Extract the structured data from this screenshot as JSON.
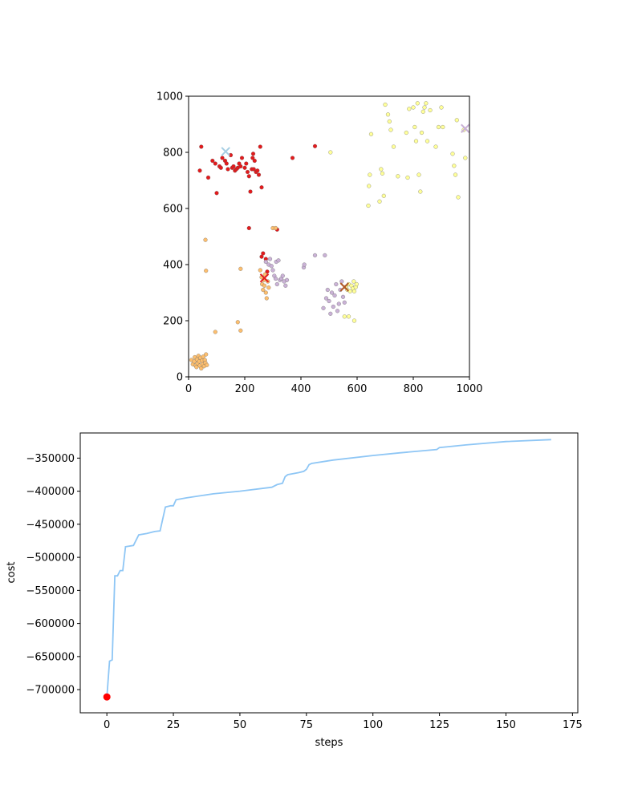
{
  "chart_data": [
    {
      "type": "scatter",
      "title": "",
      "xlabel": "",
      "ylabel": "",
      "xlim": [
        0,
        1000
      ],
      "ylim": [
        0,
        1000
      ],
      "x_ticks": [
        "0",
        "200",
        "400",
        "600",
        "800",
        "1000"
      ],
      "y_ticks": [
        "0",
        "200",
        "400",
        "600",
        "800",
        "1000"
      ],
      "grid": false,
      "legend": "none",
      "clusters": [
        {
          "color": "#e31a1c",
          "center": [
            270,
            352
          ],
          "points": [
            [
              40,
              735
            ],
            [
              45,
              820
            ],
            [
              70,
              710
            ],
            [
              85,
              770
            ],
            [
              95,
              760
            ],
            [
              100,
              655
            ],
            [
              110,
              750
            ],
            [
              115,
              745
            ],
            [
              120,
              780
            ],
            [
              130,
              770
            ],
            [
              135,
              760
            ],
            [
              140,
              740
            ],
            [
              150,
              790
            ],
            [
              155,
              745
            ],
            [
              160,
              750
            ],
            [
              165,
              735
            ],
            [
              170,
              740
            ],
            [
              175,
              745
            ],
            [
              180,
              760
            ],
            [
              185,
              750
            ],
            [
              190,
              780
            ],
            [
              200,
              745
            ],
            [
              205,
              760
            ],
            [
              210,
              730
            ],
            [
              215,
              715
            ],
            [
              220,
              660
            ],
            [
              225,
              740
            ],
            [
              228,
              780
            ],
            [
              230,
              795
            ],
            [
              232,
              740
            ],
            [
              235,
              770
            ],
            [
              240,
              730
            ],
            [
              245,
              735
            ],
            [
              250,
              720
            ],
            [
              255,
              820
            ],
            [
              260,
              675
            ],
            [
              215,
              530
            ],
            [
              315,
              525
            ],
            [
              260,
              428
            ],
            [
              265,
              440
            ],
            [
              275,
              420
            ],
            [
              280,
              375
            ],
            [
              370,
              780
            ],
            [
              450,
              822
            ]
          ]
        },
        {
          "color": "#fdbf6f",
          "center": [
            270,
            352
          ],
          "points": [
            [
              60,
              488
            ],
            [
              62,
              378
            ],
            [
              95,
              160
            ],
            [
              175,
              195
            ],
            [
              185,
              165
            ],
            [
              185,
              385
            ],
            [
              10,
              60
            ],
            [
              15,
              45
            ],
            [
              20,
              55
            ],
            [
              22,
              70
            ],
            [
              25,
              40
            ],
            [
              28,
              35
            ],
            [
              30,
              62
            ],
            [
              32,
              48
            ],
            [
              35,
              75
            ],
            [
              38,
              55
            ],
            [
              40,
              40
            ],
            [
              42,
              68
            ],
            [
              45,
              30
            ],
            [
              48,
              58
            ],
            [
              50,
              45
            ],
            [
              52,
              72
            ],
            [
              55,
              38
            ],
            [
              58,
              60
            ],
            [
              60,
              50
            ],
            [
              62,
              80
            ],
            [
              65,
              42
            ],
            [
              255,
              380
            ],
            [
              260,
              355
            ],
            [
              262,
              330
            ],
            [
              265,
              310
            ],
            [
              268,
              345
            ],
            [
              270,
              325
            ],
            [
              272,
              365
            ],
            [
              275,
              300
            ],
            [
              278,
              280
            ],
            [
              282,
              340
            ],
            [
              285,
              318
            ],
            [
              300,
              530
            ],
            [
              310,
              530
            ]
          ]
        },
        {
          "color": "#cab2d6",
          "center": [
            985,
            885
          ],
          "points": [
            [
              275,
              410
            ],
            [
              285,
              400
            ],
            [
              290,
              420
            ],
            [
              295,
              395
            ],
            [
              300,
              380
            ],
            [
              305,
              360
            ],
            [
              310,
              350
            ],
            [
              312,
              410
            ],
            [
              315,
              330
            ],
            [
              320,
              415
            ],
            [
              325,
              345
            ],
            [
              330,
              350
            ],
            [
              335,
              360
            ],
            [
              340,
              340
            ],
            [
              345,
              325
            ],
            [
              350,
              345
            ],
            [
              410,
              390
            ],
            [
              412,
              400
            ],
            [
              450,
              433
            ],
            [
              485,
              433
            ],
            [
              480,
              245
            ],
            [
              490,
              280
            ],
            [
              495,
              310
            ],
            [
              500,
              270
            ],
            [
              505,
              225
            ],
            [
              510,
              300
            ],
            [
              515,
              250
            ],
            [
              520,
              290
            ],
            [
              525,
              330
            ],
            [
              530,
              235
            ],
            [
              535,
              260
            ],
            [
              540,
              310
            ],
            [
              545,
              340
            ],
            [
              550,
              285
            ],
            [
              555,
              265
            ],
            [
              560,
              320
            ]
          ]
        },
        {
          "color": "#ffff99",
          "center": [
            555,
            320
          ],
          "points": [
            [
              505,
              800
            ],
            [
              555,
              215
            ],
            [
              570,
              215
            ],
            [
              590,
              200
            ],
            [
              560,
              320
            ],
            [
              565,
              310
            ],
            [
              570,
              330
            ],
            [
              575,
              305
            ],
            [
              580,
              325
            ],
            [
              585,
              315
            ],
            [
              588,
              340
            ],
            [
              590,
              305
            ],
            [
              595,
              320
            ],
            [
              598,
              330
            ],
            [
              640,
              610
            ],
            [
              642,
              680
            ],
            [
              645,
              720
            ],
            [
              650,
              865
            ],
            [
              680,
              625
            ],
            [
              685,
              740
            ],
            [
              690,
              725
            ],
            [
              695,
              645
            ],
            [
              700,
              970
            ],
            [
              710,
              935
            ],
            [
              715,
              910
            ],
            [
              720,
              880
            ],
            [
              730,
              820
            ],
            [
              745,
              715
            ],
            [
              775,
              870
            ],
            [
              780,
              710
            ],
            [
              785,
              955
            ],
            [
              800,
              960
            ],
            [
              805,
              890
            ],
            [
              810,
              840
            ],
            [
              815,
              975
            ],
            [
              820,
              720
            ],
            [
              825,
              660
            ],
            [
              830,
              870
            ],
            [
              835,
              945
            ],
            [
              840,
              960
            ],
            [
              845,
              975
            ],
            [
              850,
              840
            ],
            [
              860,
              950
            ],
            [
              880,
              820
            ],
            [
              890,
              890
            ],
            [
              900,
              960
            ],
            [
              905,
              890
            ],
            [
              940,
              795
            ],
            [
              945,
              752
            ],
            [
              950,
              720
            ],
            [
              955,
              915
            ],
            [
              960,
              640
            ],
            [
              980,
              880
            ],
            [
              985,
              780
            ]
          ]
        }
      ],
      "markers": [
        {
          "color": "#a6cee3",
          "x": 132,
          "y": 803
        },
        {
          "color": "#e31a1c",
          "x": 270,
          "y": 352
        },
        {
          "color": "#cab2d6",
          "x": 985,
          "y": 885
        },
        {
          "color": "#b15928",
          "x": 555,
          "y": 320
        }
      ]
    },
    {
      "type": "line",
      "title": "",
      "xlabel": "steps",
      "ylabel": "cost",
      "xlim": [
        -10,
        177
      ],
      "ylim": [
        -735000,
        -312000
      ],
      "x_ticks": [
        "0",
        "25",
        "50",
        "75",
        "100",
        "125",
        "150",
        "175"
      ],
      "y_ticks": [
        "−350000",
        "−400000",
        "−450000",
        "−500000",
        "−550000",
        "−600000",
        "−650000",
        "−700000"
      ],
      "grid": false,
      "legend": "none",
      "line_color": "#8ec6f5",
      "start_point": {
        "x": 0,
        "y": -711000,
        "color": "#ff0000"
      },
      "x": [
        0,
        1,
        2,
        3,
        4,
        5,
        6,
        7,
        10,
        12,
        15,
        18,
        20,
        22,
        24,
        25,
        26,
        30,
        40,
        50,
        62,
        64,
        66,
        67,
        68,
        72,
        74,
        75,
        76,
        77,
        85,
        100,
        110,
        124,
        125,
        135,
        150,
        167
      ],
      "y": [
        -711000,
        -657000,
        -655000,
        -528000,
        -528000,
        -520000,
        -520000,
        -484000,
        -482000,
        -466000,
        -464000,
        -461000,
        -460000,
        -424000,
        -422000,
        -422000,
        -413000,
        -410000,
        -404000,
        -400000,
        -394000,
        -390000,
        -388000,
        -378000,
        -375000,
        -372000,
        -370000,
        -367000,
        -360000,
        -358000,
        -353000,
        -346000,
        -342000,
        -337000,
        -334000,
        -330000,
        -325000,
        -322000
      ]
    }
  ]
}
